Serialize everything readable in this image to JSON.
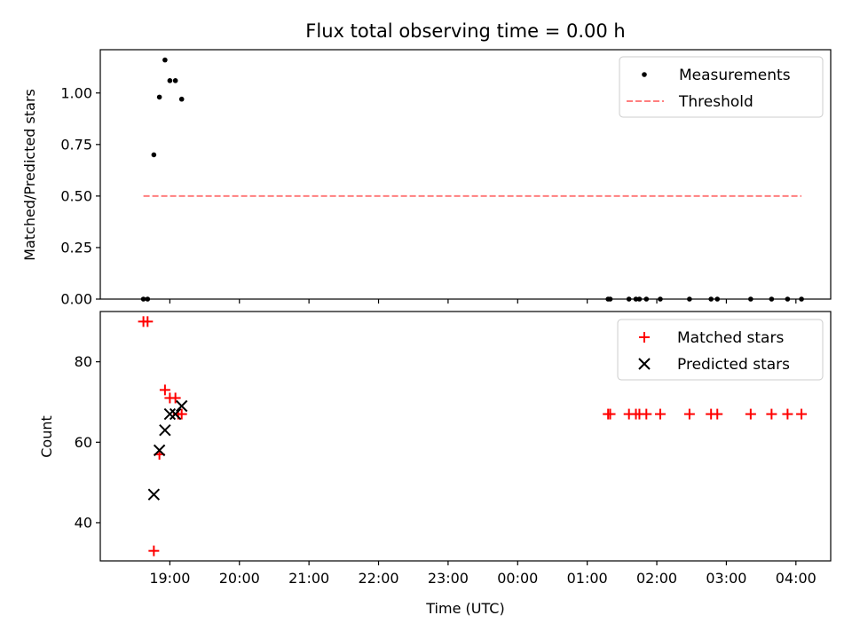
{
  "chart_data": [
    {
      "type": "scatter",
      "title": "Flux total observing time = 0.00 h",
      "xlabel": "",
      "ylabel": "Matched/Predicted stars",
      "xlim": [
        18.0,
        28.5
      ],
      "ylim": [
        0.0,
        1.21
      ],
      "yticks": [
        0.0,
        0.25,
        0.5,
        0.75,
        1.0
      ],
      "ytick_labels": [
        "0.00",
        "0.25",
        "0.50",
        "0.75",
        "1.00"
      ],
      "legend_position": "top-right",
      "series": [
        {
          "name": "Measurements",
          "kind": "points",
          "color": "#000000",
          "x": [
            18.62,
            18.68,
            18.77,
            18.85,
            18.93,
            19.0,
            19.08,
            19.17,
            25.3,
            25.33,
            25.6,
            25.7,
            25.75,
            25.85,
            26.05,
            26.47,
            26.78,
            26.87,
            27.35,
            27.65,
            27.88,
            28.08
          ],
          "y": [
            0.0,
            0.0,
            0.7,
            0.98,
            1.16,
            1.06,
            1.06,
            0.97,
            0.0,
            0.0,
            0.0,
            0.0,
            0.0,
            0.0,
            0.0,
            0.0,
            0.0,
            0.0,
            0.0,
            0.0,
            0.0,
            0.0
          ]
        },
        {
          "name": "Threshold",
          "kind": "dashed-line",
          "color": "#ff7f7f",
          "x": [
            18.62,
            28.08
          ],
          "y": [
            0.5,
            0.5
          ]
        }
      ]
    },
    {
      "type": "scatter",
      "title": "",
      "xlabel": "Time (UTC)",
      "ylabel": "Count",
      "xlim": [
        18.0,
        28.5
      ],
      "ylim": [
        30.5,
        92.5
      ],
      "yticks": [
        40,
        60,
        80
      ],
      "ytick_labels": [
        "40",
        "60",
        "80"
      ],
      "xticks": [
        19,
        20,
        21,
        22,
        23,
        24,
        25,
        26,
        27,
        28
      ],
      "xtick_labels": [
        "19:00",
        "20:00",
        "21:00",
        "22:00",
        "23:00",
        "00:00",
        "01:00",
        "02:00",
        "03:00",
        "04:00"
      ],
      "legend_position": "top-right",
      "series": [
        {
          "name": "Matched stars",
          "kind": "plus",
          "color": "#ff0000",
          "x": [
            18.62,
            18.68,
            18.77,
            18.85,
            18.93,
            19.0,
            19.08,
            19.12,
            19.17,
            25.3,
            25.33,
            25.6,
            25.7,
            25.75,
            25.85,
            26.05,
            26.47,
            26.78,
            26.87,
            27.35,
            27.65,
            27.88,
            28.08
          ],
          "y": [
            90,
            90,
            33,
            57,
            73,
            71,
            71,
            67,
            67,
            67,
            67,
            67,
            67,
            67,
            67,
            67,
            67,
            67,
            67,
            67,
            67,
            67,
            67
          ]
        },
        {
          "name": "Predicted stars",
          "kind": "x",
          "color": "#000000",
          "x": [
            18.77,
            18.85,
            18.93,
            19.0,
            19.08,
            19.17
          ],
          "y": [
            47,
            58,
            63,
            67,
            67,
            69
          ]
        }
      ]
    }
  ]
}
